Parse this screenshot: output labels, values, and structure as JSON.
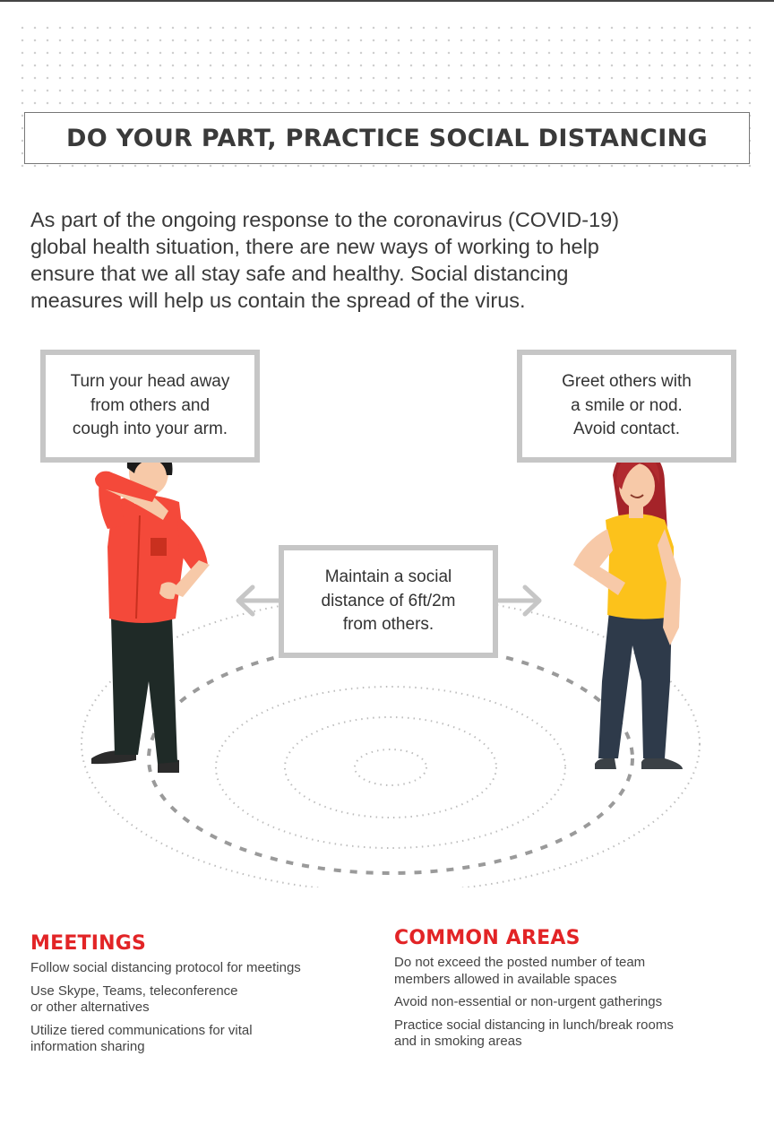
{
  "title": "DO YOUR PART, PRACTICE SOCIAL DISTANCING",
  "intro_lines": [
    "As part of the ongoing response to the coronavirus (COVID-19)",
    "global health situation, there are new ways of working to help",
    "ensure that we all stay safe and healthy. Social distancing",
    "measures will help us contain the spread of the virus."
  ],
  "bubbles": {
    "left": [
      "Turn your head away",
      "from others and",
      "cough into your arm."
    ],
    "right": [
      "Greet others with",
      "a smile or nod.",
      "Avoid contact."
    ],
    "middle": [
      "Maintain a social",
      "distance of 6ft/2m",
      "from others."
    ]
  },
  "meetings": {
    "heading": "MEETINGS",
    "items": [
      [
        "Follow social distancing protocol for meetings"
      ],
      [
        "Use Skype, Teams, teleconference",
        "or other alternatives"
      ],
      [
        "Utilize tiered communications for vital",
        "information sharing"
      ]
    ]
  },
  "common_areas": {
    "heading": "COMMON AREAS",
    "items": [
      [
        "Do not exceed the posted number of team",
        "members allowed in available spaces"
      ],
      [
        "Avoid non-essential or non-urgent gatherings"
      ],
      [
        "Practice social distancing in lunch/break rooms",
        "and in smoking areas"
      ]
    ]
  },
  "colors": {
    "accent_red": "#e22426",
    "shirt_red": "#f4493a",
    "shirt_yellow": "#fcc21b",
    "gray_frame": "#c6c6c6"
  }
}
